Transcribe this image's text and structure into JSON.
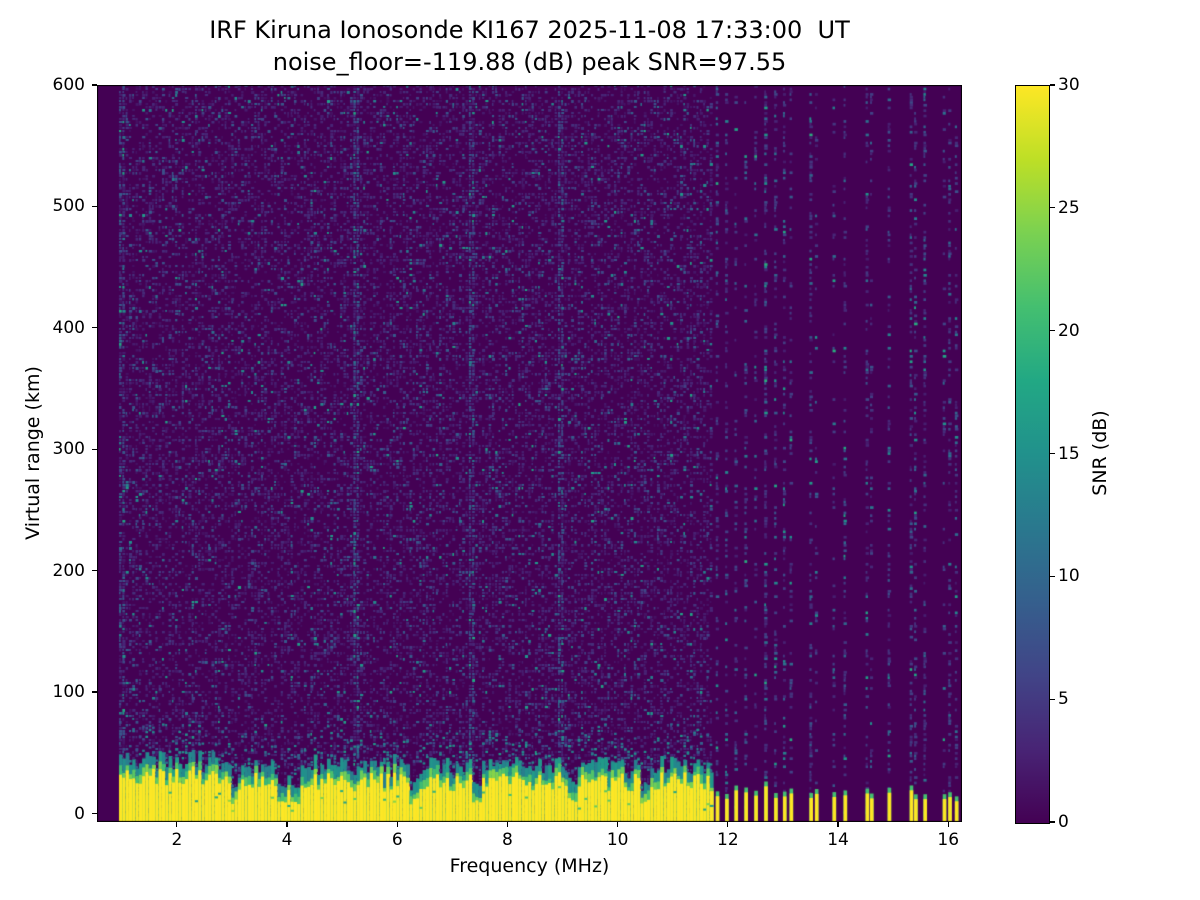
{
  "chart_data": {
    "type": "heatmap",
    "title": "IRF Kiruna Ionosonde KI167 2025-11-08 17:33:00  UT",
    "subtitle": "noise_floor=-119.88 (dB) peak SNR=97.55",
    "xlabel": "Frequency (MHz)",
    "ylabel": "Virtual range (km)",
    "xlim": [
      0.55,
      16.25
    ],
    "ylim": [
      -7,
      600
    ],
    "xticks": [
      2,
      4,
      6,
      8,
      10,
      12,
      14,
      16
    ],
    "yticks": [
      0,
      100,
      200,
      300,
      400,
      500,
      600
    ],
    "grid": false,
    "colorbar": {
      "label": "SNR (dB)",
      "min": 0,
      "max": 30,
      "ticks": [
        0,
        5,
        10,
        15,
        20,
        25,
        30
      ],
      "colormap": "viridis",
      "stops": [
        [
          0.0,
          "#440154"
        ],
        [
          0.1,
          "#482475"
        ],
        [
          0.2,
          "#414487"
        ],
        [
          0.3,
          "#355f8d"
        ],
        [
          0.4,
          "#2a788e"
        ],
        [
          0.5,
          "#21918c"
        ],
        [
          0.6,
          "#22a884"
        ],
        [
          0.7,
          "#44bf70"
        ],
        [
          0.8,
          "#7ad151"
        ],
        [
          0.9,
          "#bddf26"
        ],
        [
          1.0,
          "#fde725"
        ]
      ]
    },
    "content": {
      "station": "IRF Kiruna Ionosonde KI167",
      "timestamp_ut": "2025-11-08 17:33:00",
      "noise_floor_db": -119.88,
      "peak_snr_db": 97.55,
      "seed": 167,
      "dense_sweep": {
        "f_start": 0.95,
        "f_end": 11.68,
        "speckle_density": 0.42
      },
      "ground_clutter": {
        "base_km": -7,
        "top_km_mean": 26,
        "top_km_var": 8,
        "cap_green_km": 6,
        "cap_teal_km": 9
      },
      "clutter_notches": [
        3.05,
        3.9,
        4.15,
        6.3,
        7.45,
        9.2,
        10.5
      ],
      "rfi_lines": [
        5.25,
        7.35,
        9.0
      ],
      "sparse_channels": [
        11.78,
        11.95,
        12.12,
        12.3,
        12.48,
        12.66,
        12.84,
        13.0,
        13.12,
        13.48,
        13.58,
        13.9,
        14.1,
        14.5,
        14.58,
        14.9,
        15.3,
        15.38,
        15.55,
        15.9,
        16.0,
        16.12
      ]
    }
  }
}
